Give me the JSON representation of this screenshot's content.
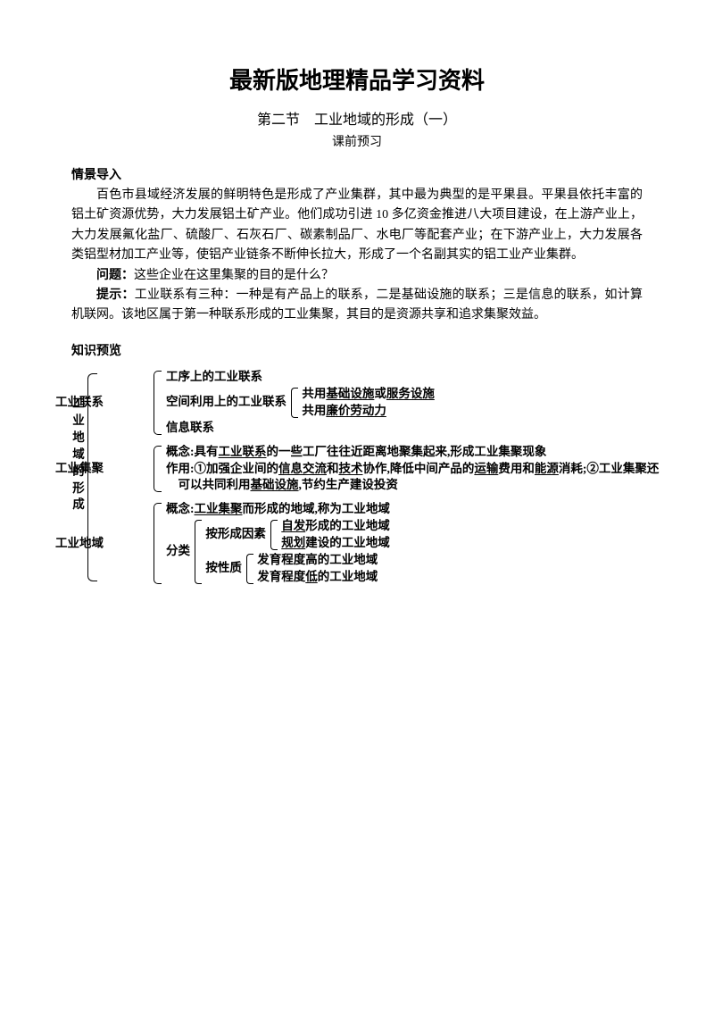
{
  "title": "最新版地理精品学习资料",
  "subtitle": "第二节　工业地域的形成（一）",
  "note": "课前预习",
  "s1_head": "情景导入",
  "s1_p1": "百色市县域经济发展的鲜明特色是形成了产业集群，其中最为典型的是平果县。平果县依托丰富的铝土矿资源优势，大力发展铝土矿产业。他们成功引进 10 多亿资金推进八大项目建设，在上游产业上，大力发展氟化盐厂、硫酸厂、石灰石厂、碳素制品厂、水电厂等配套产业；在下游产业上，大力发展各类铝型材加工产业等，使铝产业链条不断伸长拉大，形成了一个名副其实的铝工业产业集群。",
  "q_label": "问题：",
  "q_text": "这些企业在这里集聚的目的是什么？",
  "a_label": "提示：",
  "a_text": "工业联系有三种：一种是有产品上的联系，二是基础设施的联系；三是信息的联系，如计算机联网。该地区属于第一种联系形成的工业集聚，其目的是资源共享和追求集聚效益。",
  "s2_head": "知识预览",
  "vlabel": "工业地域的形成",
  "b1_label": "工业联系",
  "b1_r1": "工序上的工业联系",
  "b1_r2a": "空间利用上的工业联系",
  "b1_r2b1a": "共用",
  "b1_r2b1b": "基础设施",
  "b1_r2b1c": "或",
  "b1_r2b1d": "服务设施",
  "b1_r2b2a": "共用",
  "b1_r2b2b": "廉价劳动力",
  "b1_r3": "信息联系",
  "b2_label": "工业集聚",
  "b2_r1a": "概念:具有",
  "b2_r1b": "工业联系",
  "b2_r1c": "的一些工厂往往近距离地聚集起来,形成工业集聚现象",
  "b2_r2a": "作用:①加强企业间的",
  "b2_r2b": "信息交流",
  "b2_r2c": "和",
  "b2_r2d": "技术",
  "b2_r2e": "协作,降低中间产品的",
  "b2_r2f": "运输",
  "b2_r2g": "费用和",
  "b2_r2h": "能源",
  "b2_r2i": "消耗;②工业集聚还",
  "b2_r3a": "可以共同利用",
  "b2_r3b": "基础设施",
  "b2_r3c": ",节约生产建设投资",
  "b3_label": "工业地域",
  "b3_r1a": "概念:",
  "b3_r1b": "工业集聚",
  "b3_r1c": "而形成的地域,称为工业地域",
  "b3_cls": "分类",
  "b3_c1": "按形成因素",
  "b3_c1a1": "自发",
  "b3_c1a2": "形成的工业地域",
  "b3_c1b1": "规划",
  "b3_c1b2": "建设的工业地域",
  "b3_c2": "按性质",
  "b3_c2a": "发育程度高的工业地域",
  "b3_c2b1": "发育程度",
  "b3_c2b2": "低",
  "b3_c2b3": "的工业地域"
}
